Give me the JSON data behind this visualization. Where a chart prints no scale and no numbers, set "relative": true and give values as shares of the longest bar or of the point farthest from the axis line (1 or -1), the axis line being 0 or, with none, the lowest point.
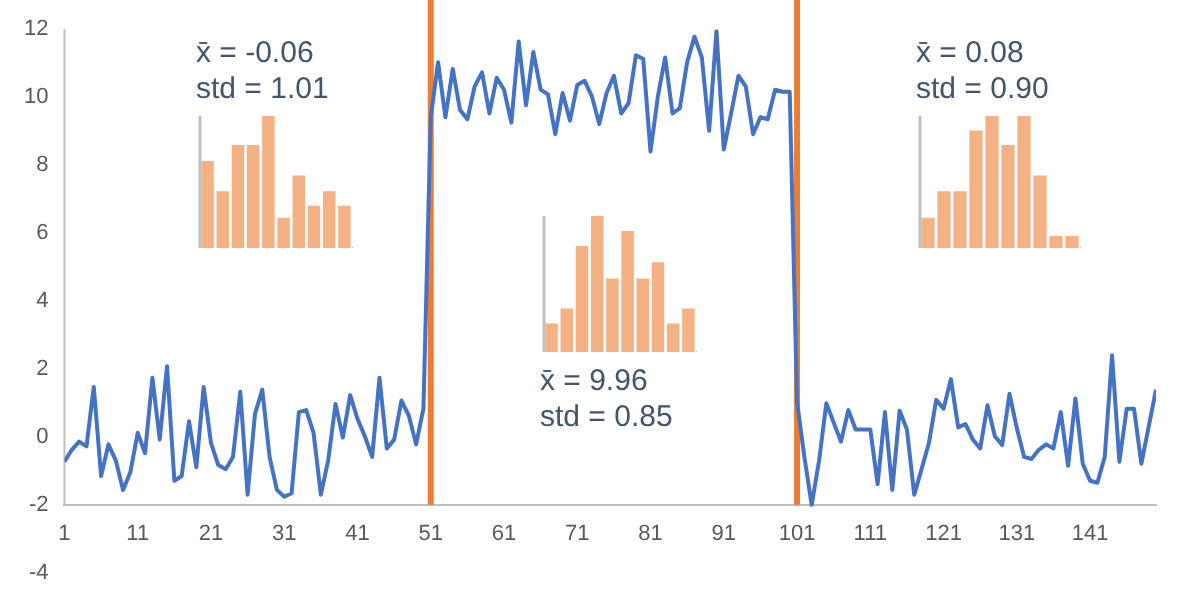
{
  "chart_data": [
    {
      "type": "line",
      "x": [
        1,
        2,
        3,
        4,
        5,
        6,
        7,
        8,
        9,
        10,
        11,
        12,
        13,
        14,
        15,
        16,
        17,
        18,
        19,
        20,
        21,
        22,
        23,
        24,
        25,
        26,
        27,
        28,
        29,
        30,
        31,
        32,
        33,
        34,
        35,
        36,
        37,
        38,
        39,
        40,
        41,
        42,
        43,
        44,
        45,
        46,
        47,
        48,
        49,
        50,
        51,
        52,
        53,
        54,
        55,
        56,
        57,
        58,
        59,
        60,
        61,
        62,
        63,
        64,
        65,
        66,
        67,
        68,
        69,
        70,
        71,
        72,
        73,
        74,
        75,
        76,
        77,
        78,
        79,
        80,
        81,
        82,
        83,
        84,
        85,
        86,
        87,
        88,
        89,
        90,
        91,
        92,
        93,
        94,
        95,
        96,
        97,
        98,
        99,
        100,
        101,
        102,
        103,
        104,
        105,
        106,
        107,
        108,
        109,
        110,
        111,
        112,
        113,
        114,
        115,
        116,
        117,
        118,
        119,
        120,
        121,
        122,
        123,
        124,
        125,
        126,
        127,
        128,
        129,
        130,
        131,
        132,
        133,
        134,
        135,
        136,
        137,
        138,
        139,
        140,
        141,
        142,
        143,
        144,
        145,
        146,
        147,
        148,
        149,
        150
      ],
      "series": [
        {
          "color": "#4472c4",
          "values": [
            -0.73,
            -0.38,
            -0.14,
            -0.28,
            1.47,
            -1.15,
            -0.22,
            -0.69,
            -1.56,
            -1.03,
            0.12,
            -0.48,
            1.74,
            -0.08,
            2.08,
            -1.29,
            -1.15,
            0.46,
            -0.89,
            1.47,
            -0.18,
            -0.83,
            -0.95,
            -0.59,
            1.33,
            -1.7,
            0.67,
            1.39,
            -0.59,
            -1.56,
            -1.76,
            -1.66,
            0.73,
            0.79,
            0.12,
            -1.7,
            -0.69,
            0.97,
            -0.02,
            1.23,
            0.53,
            0.02,
            -0.59,
            1.74,
            -0.34,
            -0.08,
            1.07,
            0.63,
            -0.22,
            0.83,
            9.41,
            11.03,
            9.41,
            10.83,
            9.62,
            9.35,
            10.32,
            10.73,
            9.52,
            10.57,
            10.22,
            9.25,
            11.64,
            9.76,
            11.33,
            10.22,
            10.08,
            8.91,
            10.12,
            9.31,
            10.36,
            10.48,
            10.02,
            9.21,
            10.12,
            10.63,
            9.52,
            9.82,
            11.23,
            11.13,
            8.4,
            10.02,
            11.17,
            9.52,
            9.68,
            11.03,
            11.78,
            11.17,
            9.01,
            11.94,
            8.46,
            9.52,
            10.63,
            10.32,
            8.91,
            9.41,
            9.35,
            10.22,
            10.16,
            10.16,
            1.03,
            -0.59,
            -2.0,
            -0.71,
            0.99,
            0.42,
            -0.14,
            0.79,
            0.22,
            0.22,
            0.22,
            -1.39,
            0.73,
            -1.56,
            0.77,
            0.22,
            -1.7,
            -0.95,
            -0.18,
            1.09,
            0.83,
            1.7,
            0.28,
            0.38,
            -0.08,
            -0.34,
            0.93,
            0.02,
            -0.24,
            1.27,
            0.26,
            -0.59,
            -0.65,
            -0.38,
            -0.22,
            -0.34,
            0.73,
            -0.85,
            1.13,
            -0.79,
            -1.29,
            -1.35,
            -0.59,
            2.4,
            -0.73,
            0.83,
            0.83,
            -0.79,
            0.3,
            1.39
          ]
        }
      ],
      "xlim": [
        1,
        150
      ],
      "xticks": [
        1,
        11,
        21,
        31,
        41,
        51,
        61,
        71,
        81,
        91,
        101,
        111,
        121,
        131,
        141
      ],
      "ylim": [
        -4,
        12
      ],
      "yticks": [
        -4,
        -2,
        0,
        2,
        4,
        6,
        8,
        10,
        12
      ],
      "ref_lines": [
        {
          "axis": "x",
          "value": 51,
          "color": "#ed7d31"
        },
        {
          "axis": "x",
          "value": 101,
          "color": "#ed7d31"
        }
      ],
      "grid": false,
      "legend": false,
      "marker": "none",
      "line_style": "solid"
    },
    {
      "type": "bar",
      "categories": [
        null,
        null,
        null,
        null,
        null,
        null,
        null,
        null,
        null,
        null
      ],
      "values": [
        0.66,
        0.43,
        0.78,
        0.78,
        1,
        0.23,
        0.55,
        0.32,
        0.43,
        0.32
      ],
      "color": "#f4b183",
      "relative": true,
      "annotations": [
        "x̄ = -0.06",
        "std = 1.01"
      ]
    },
    {
      "type": "bar",
      "categories": [
        null,
        null,
        null,
        null,
        null,
        null,
        null,
        null,
        null,
        null
      ],
      "values": [
        0.21,
        0.32,
        0.78,
        1,
        0.54,
        0.89,
        0.54,
        0.66,
        0.21,
        0.32
      ],
      "color": "#f4b183",
      "relative": true,
      "annotations": [
        "x̄ = 9.96",
        "std = 0.85"
      ]
    },
    {
      "type": "bar",
      "categories": [
        null,
        null,
        null,
        null,
        null,
        null,
        null,
        null,
        null,
        null
      ],
      "values": [
        0.23,
        0.43,
        0.43,
        0.89,
        1,
        0.78,
        1,
        0.55,
        0.09,
        0.09
      ],
      "color": "#f4b183",
      "relative": true,
      "annotations": [
        "x̄ = 0.08",
        "std = 0.90"
      ]
    }
  ]
}
